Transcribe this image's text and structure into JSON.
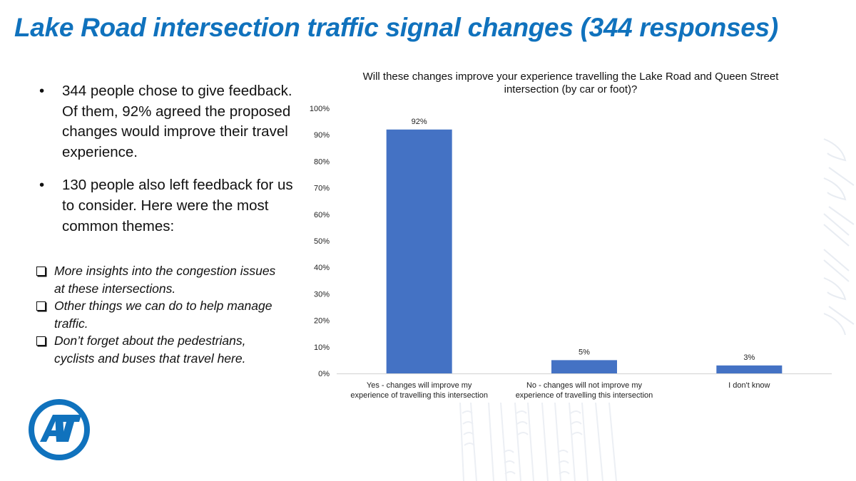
{
  "slide": {
    "title": "Lake Road intersection traffic signal changes (344 responses)",
    "bullets": [
      "344 people chose to give feedback. Of them, 92% agreed the proposed changes would improve their travel experience.",
      "130 people also left feedback for us to consider. Here were the most common themes:"
    ],
    "bullet_marker": "•",
    "themes": [
      "More insights into the congestion issues at these intersections.",
      "Other things we can do to help manage traffic.",
      "Don’t forget about the pedestrians, cyclists and buses that travel here."
    ],
    "logo_text": "AT"
  },
  "colors": {
    "title": "#1072BD",
    "bar": "#4472C4",
    "logo": "#1072BD",
    "axis": "#D9D9D9"
  },
  "chart_data": {
    "type": "bar",
    "title": "Will these changes improve your experience travelling the Lake Road and Queen Street intersection (by car or foot)?",
    "categories": [
      [
        "Yes - changes will improve my",
        "experience of travelling this intersection"
      ],
      [
        "No - changes will not improve my",
        "experience of travelling this intersection"
      ],
      [
        "I don't know"
      ]
    ],
    "values": [
      92,
      5,
      3
    ],
    "data_labels": [
      "92%",
      "5%",
      "3%"
    ],
    "ylim": [
      0,
      100
    ],
    "yticks": [
      0,
      10,
      20,
      30,
      40,
      50,
      60,
      70,
      80,
      90,
      100
    ],
    "ytick_labels": [
      "0%",
      "10%",
      "20%",
      "30%",
      "40%",
      "50%",
      "60%",
      "70%",
      "80%",
      "90%",
      "100%"
    ],
    "xlabel": "",
    "ylabel": "",
    "grid": false,
    "legend": "none"
  }
}
